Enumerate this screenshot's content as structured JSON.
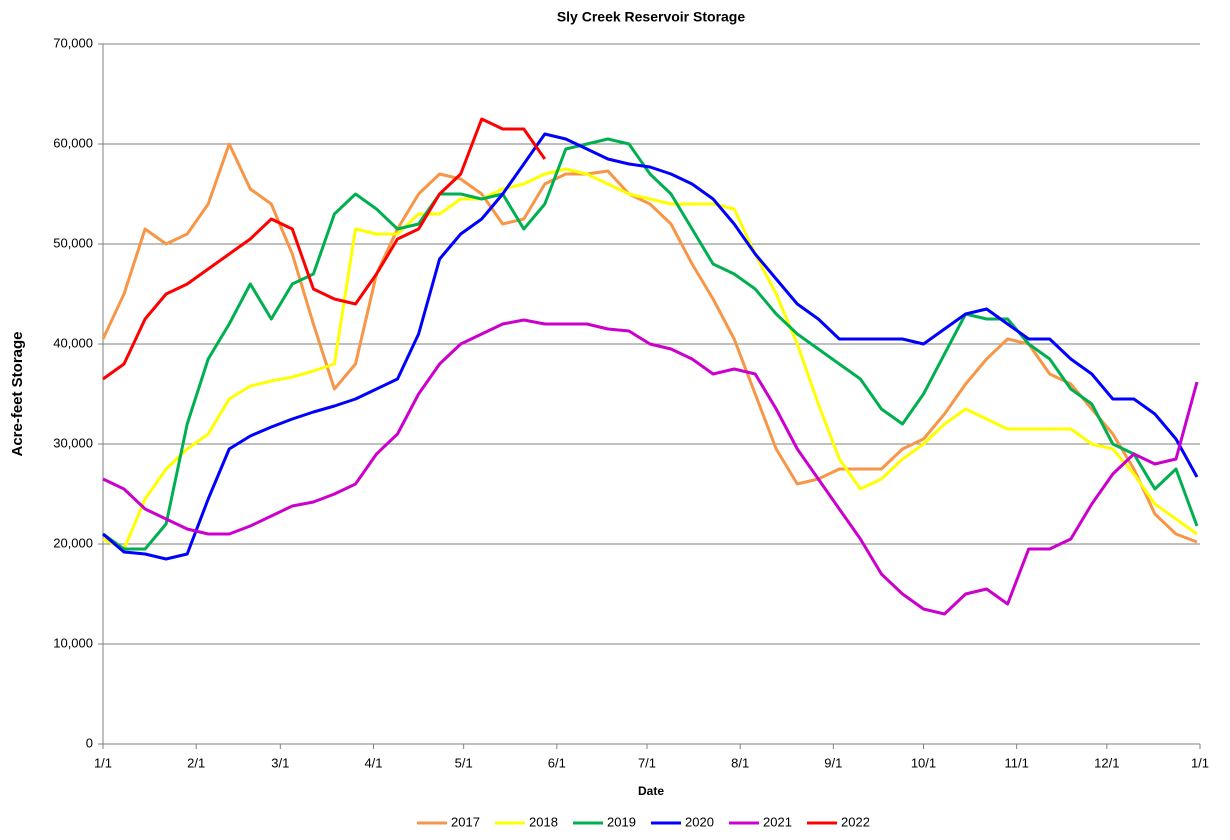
{
  "chart_data": {
    "type": "line",
    "title": "Sly Creek Reservoir Storage",
    "x_label": "Date",
    "y_label": "Acre-feet Storage",
    "x": [
      0,
      7,
      14,
      21,
      28,
      35,
      42,
      49,
      56,
      63,
      70,
      77,
      84,
      91,
      98,
      105,
      112,
      119,
      126,
      133,
      140,
      147,
      154,
      161,
      168,
      175,
      182,
      189,
      196,
      203,
      210,
      217,
      224,
      231,
      238,
      245,
      252,
      259,
      266,
      273,
      280,
      287,
      294,
      301,
      308,
      315,
      322,
      329,
      336,
      343,
      350,
      357,
      364
    ],
    "xlim": [
      0,
      365
    ],
    "xticks": [
      {
        "value": 0,
        "label": "1/1"
      },
      {
        "value": 31,
        "label": "2/1"
      },
      {
        "value": 59,
        "label": "3/1"
      },
      {
        "value": 90,
        "label": "4/1"
      },
      {
        "value": 120,
        "label": "5/1"
      },
      {
        "value": 151,
        "label": "6/1"
      },
      {
        "value": 181,
        "label": "7/1"
      },
      {
        "value": 212,
        "label": "8/1"
      },
      {
        "value": 243,
        "label": "9/1"
      },
      {
        "value": 273,
        "label": "10/1"
      },
      {
        "value": 304,
        "label": "11/1"
      },
      {
        "value": 334,
        "label": "12/1"
      },
      {
        "value": 365,
        "label": "1/1"
      }
    ],
    "ylim": [
      0,
      70000
    ],
    "yticks": [
      0,
      {
        "value": 10000,
        "label": "10,000"
      },
      {
        "value": 20000,
        "label": "20,000"
      },
      {
        "value": 30000,
        "label": "30,000"
      },
      {
        "value": 40000,
        "label": "40,000"
      },
      {
        "value": 50000,
        "label": "50,000"
      },
      {
        "value": 60000,
        "label": "60,000"
      },
      {
        "value": 70000,
        "label": "70,000"
      }
    ],
    "grid": true,
    "legend": "bottom",
    "series": [
      {
        "name": "2017",
        "color": "#f79646",
        "values": [
          40500,
          45000,
          51500,
          50000,
          51000,
          54000,
          60000,
          55500,
          54000,
          49000,
          42000,
          35500,
          38000,
          47000,
          51500,
          55000,
          57000,
          56500,
          55000,
          52000,
          52500,
          56000,
          57000,
          57000,
          57300,
          55000,
          54000,
          52000,
          48000,
          44500,
          40500,
          35000,
          29500,
          26000,
          26500,
          27500,
          27500,
          27500,
          29500,
          30500,
          33000,
          36000,
          38500,
          40500,
          40000,
          37000,
          36000,
          33500,
          31000,
          27500,
          23000,
          21000,
          20200
        ]
      },
      {
        "name": "2018",
        "color": "#ffff00",
        "values": [
          20500,
          19500,
          24500,
          27500,
          29500,
          31000,
          34500,
          35800,
          36300,
          36700,
          37300,
          38000,
          51500,
          51000,
          51000,
          53000,
          53000,
          54500,
          54500,
          55500,
          56000,
          57000,
          57500,
          57000,
          56000,
          55000,
          54500,
          54000,
          54000,
          54000,
          53500,
          49000,
          45000,
          40000,
          34000,
          28500,
          25500,
          26500,
          28500,
          30000,
          32000,
          33500,
          32500,
          31500,
          31500,
          31500,
          31500,
          30000,
          29500,
          27000,
          24000,
          22500,
          21000
        ]
      },
      {
        "name": "2019",
        "color": "#00b050",
        "values": [
          21000,
          19500,
          19500,
          22000,
          32000,
          38500,
          42000,
          46000,
          42500,
          46000,
          47000,
          53000,
          55000,
          53500,
          51500,
          52000,
          55000,
          55000,
          54500,
          55000,
          51500,
          54000,
          59500,
          60000,
          60500,
          60000,
          57000,
          55000,
          51500,
          48000,
          47000,
          45500,
          43000,
          41000,
          39500,
          38000,
          36500,
          33500,
          32000,
          35000,
          39000,
          43000,
          42500,
          42500,
          40000,
          38500,
          35500,
          34000,
          30000,
          29000,
          25500,
          27500,
          21800
        ]
      },
      {
        "name": "2020",
        "color": "#0000ff",
        "values": [
          21000,
          19200,
          19000,
          18500,
          19000,
          24500,
          29500,
          30800,
          31700,
          32500,
          33200,
          33800,
          34500,
          35500,
          36500,
          41000,
          48500,
          51000,
          52500,
          55000,
          58000,
          61000,
          60500,
          59500,
          58500,
          58000,
          57700,
          57000,
          56000,
          54500,
          52000,
          49000,
          46500,
          44000,
          42500,
          40500,
          40500,
          40500,
          40500,
          40000,
          41500,
          43000,
          43500,
          42000,
          40500,
          40500,
          38500,
          37000,
          34500,
          34500,
          33000,
          30500,
          26700
        ]
      },
      {
        "name": "2021",
        "color": "#cc00cc",
        "values": [
          26500,
          25500,
          23500,
          22500,
          21500,
          21000,
          21000,
          21800,
          22800,
          23800,
          24200,
          25000,
          26000,
          29000,
          31000,
          35000,
          38000,
          40000,
          41000,
          42000,
          42400,
          42000,
          42000,
          42000,
          41500,
          41300,
          40000,
          39500,
          38500,
          37000,
          37500,
          37000,
          33500,
          29500,
          26500,
          23500,
          20500,
          17000,
          15000,
          13500,
          13000,
          15000,
          15500,
          14000,
          19500,
          19500,
          20500,
          24000,
          27000,
          29000,
          28000,
          28500,
          36200
        ]
      },
      {
        "name": "2022",
        "color": "#ff0000",
        "values": [
          36500,
          38000,
          42500,
          45000,
          46000,
          47500,
          49000,
          50500,
          52500,
          51500,
          45500,
          44500,
          44000,
          47000,
          50500,
          51500,
          55000,
          57000,
          62500,
          61500,
          61500,
          58500,
          null,
          null,
          null,
          null,
          null,
          null,
          null,
          null,
          null,
          null,
          null,
          null,
          null,
          null,
          null,
          null,
          null,
          null,
          null,
          null,
          null,
          null,
          null,
          null,
          null,
          null,
          null,
          null,
          null,
          null,
          null
        ]
      }
    ]
  }
}
